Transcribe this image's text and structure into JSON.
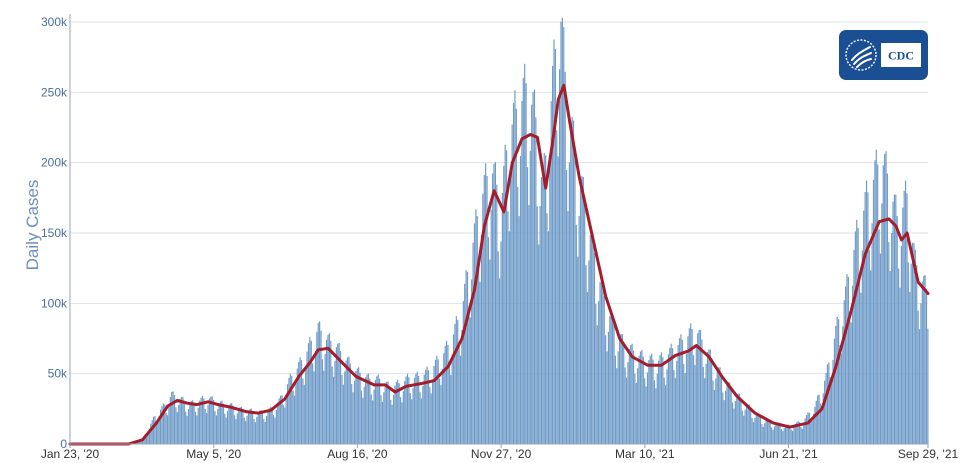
{
  "chart_data": {
    "type": "bar",
    "ylabel": "Daily Cases",
    "ylim": [
      0,
      300000
    ],
    "y_ticks": [
      {
        "value": 0,
        "label": "0"
      },
      {
        "value": 50000,
        "label": "50k"
      },
      {
        "value": 100000,
        "label": "100k"
      },
      {
        "value": 150000,
        "label": "150k"
      },
      {
        "value": 200000,
        "label": "200k"
      },
      {
        "value": 250000,
        "label": "250k"
      },
      {
        "value": 300000,
        "label": "300k"
      }
    ],
    "x_range": [
      "2020-01-23",
      "2021-09-29"
    ],
    "x_ticks": [
      {
        "date": "2020-01-23",
        "label": "Jan 23, '20"
      },
      {
        "date": "2020-05-05",
        "label": "May 5, '20"
      },
      {
        "date": "2020-08-16",
        "label": "Aug 16, '20"
      },
      {
        "date": "2020-11-27",
        "label": "Nov 27, '20"
      },
      {
        "date": "2021-03-10",
        "label": "Mar 10, '21"
      },
      {
        "date": "2021-06-21",
        "label": "Jun 21, '21"
      },
      {
        "date": "2021-09-29",
        "label": "Sep 29, '21"
      }
    ],
    "grid": true,
    "colors": {
      "bars": "#6f9bc8",
      "average_line": "#a31d2b"
    },
    "series": [
      {
        "type": "bar",
        "points": [
          [
            "2020-01-23",
            0
          ],
          [
            "2020-03-01",
            0
          ],
          [
            "2020-03-10",
            500
          ],
          [
            "2020-03-15",
            3000
          ],
          [
            "2020-03-20",
            12000
          ],
          [
            "2020-03-25",
            20000
          ],
          [
            "2020-04-01",
            27000
          ],
          [
            "2020-04-05",
            33000
          ],
          [
            "2020-04-10",
            31000
          ],
          [
            "2020-04-15",
            28000
          ],
          [
            "2020-04-20",
            27000
          ],
          [
            "2020-04-25",
            29000
          ],
          [
            "2020-05-01",
            31000
          ],
          [
            "2020-05-05",
            29000
          ],
          [
            "2020-05-10",
            27000
          ],
          [
            "2020-05-15",
            26000
          ],
          [
            "2020-05-20",
            25000
          ],
          [
            "2020-05-25",
            23000
          ],
          [
            "2020-06-01",
            22000
          ],
          [
            "2020-06-08",
            21000
          ],
          [
            "2020-06-15",
            23000
          ],
          [
            "2020-06-22",
            30000
          ],
          [
            "2020-06-28",
            42000
          ],
          [
            "2020-07-05",
            52000
          ],
          [
            "2020-07-10",
            60000
          ],
          [
            "2020-07-15",
            70000
          ],
          [
            "2020-07-19",
            77000
          ],
          [
            "2020-07-25",
            70000
          ],
          [
            "2020-08-01",
            65000
          ],
          [
            "2020-08-08",
            56000
          ],
          [
            "2020-08-16",
            48000
          ],
          [
            "2020-08-25",
            43000
          ],
          [
            "2020-09-01",
            43000
          ],
          [
            "2020-09-08",
            38000
          ],
          [
            "2020-09-15",
            40000
          ],
          [
            "2020-09-22",
            44000
          ],
          [
            "2020-10-01",
            45000
          ],
          [
            "2020-10-08",
            50000
          ],
          [
            "2020-10-15",
            58000
          ],
          [
            "2020-10-22",
            68000
          ],
          [
            "2020-10-30",
            90000
          ],
          [
            "2020-11-05",
            125000
          ],
          [
            "2020-11-13",
            165000
          ],
          [
            "2020-11-20",
            185000
          ],
          [
            "2020-11-27",
            160000
          ],
          [
            "2020-12-03",
            210000
          ],
          [
            "2020-12-10",
            225000
          ],
          [
            "2020-12-16",
            240000
          ],
          [
            "2020-12-22",
            215000
          ],
          [
            "2020-12-27",
            170000
          ],
          [
            "2021-01-02",
            230000
          ],
          [
            "2021-01-05",
            260000
          ],
          [
            "2021-01-08",
            296000
          ],
          [
            "2021-01-12",
            245000
          ],
          [
            "2021-01-18",
            200000
          ],
          [
            "2021-01-25",
            165000
          ],
          [
            "2021-02-01",
            130000
          ],
          [
            "2021-02-08",
            100000
          ],
          [
            "2021-02-15",
            80000
          ],
          [
            "2021-02-22",
            68000
          ],
          [
            "2021-03-01",
            62000
          ],
          [
            "2021-03-10",
            57000
          ],
          [
            "2021-03-18",
            55000
          ],
          [
            "2021-03-25",
            58000
          ],
          [
            "2021-04-01",
            65000
          ],
          [
            "2021-04-08",
            70000
          ],
          [
            "2021-04-15",
            78000
          ],
          [
            "2021-04-22",
            65000
          ],
          [
            "2021-05-01",
            50000
          ],
          [
            "2021-05-10",
            38000
          ],
          [
            "2021-05-20",
            28000
          ],
          [
            "2021-05-31",
            18000
          ],
          [
            "2021-06-10",
            14000
          ],
          [
            "2021-06-21",
            12000
          ],
          [
            "2021-07-01",
            15000
          ],
          [
            "2021-07-10",
            25000
          ],
          [
            "2021-07-18",
            45000
          ],
          [
            "2021-07-25",
            75000
          ],
          [
            "2021-08-01",
            100000
          ],
          [
            "2021-08-08",
            135000
          ],
          [
            "2021-08-15",
            160000
          ],
          [
            "2021-08-22",
            180000
          ],
          [
            "2021-08-27",
            190000
          ],
          [
            "2021-09-01",
            175000
          ],
          [
            "2021-09-07",
            150000
          ],
          [
            "2021-09-14",
            165000
          ],
          [
            "2021-09-20",
            120000
          ],
          [
            "2021-09-29",
            100000
          ]
        ]
      },
      {
        "type": "line",
        "points": [
          [
            "2020-01-23",
            0
          ],
          [
            "2020-03-05",
            0
          ],
          [
            "2020-03-15",
            3000
          ],
          [
            "2020-03-25",
            15000
          ],
          [
            "2020-04-02",
            27000
          ],
          [
            "2020-04-09",
            31000
          ],
          [
            "2020-04-16",
            29000
          ],
          [
            "2020-04-23",
            28000
          ],
          [
            "2020-05-01",
            30000
          ],
          [
            "2020-05-08",
            28000
          ],
          [
            "2020-05-18",
            26000
          ],
          [
            "2020-05-28",
            23000
          ],
          [
            "2020-06-06",
            22000
          ],
          [
            "2020-06-15",
            24000
          ],
          [
            "2020-06-25",
            32000
          ],
          [
            "2020-07-05",
            48000
          ],
          [
            "2020-07-13",
            58000
          ],
          [
            "2020-07-19",
            67000
          ],
          [
            "2020-07-26",
            68000
          ],
          [
            "2020-08-05",
            58000
          ],
          [
            "2020-08-15",
            48000
          ],
          [
            "2020-08-28",
            42000
          ],
          [
            "2020-09-05",
            42000
          ],
          [
            "2020-09-12",
            37000
          ],
          [
            "2020-09-20",
            41000
          ],
          [
            "2020-10-01",
            43000
          ],
          [
            "2020-10-10",
            45000
          ],
          [
            "2020-10-20",
            55000
          ],
          [
            "2020-10-30",
            75000
          ],
          [
            "2020-11-08",
            110000
          ],
          [
            "2020-11-15",
            155000
          ],
          [
            "2020-11-22",
            180000
          ],
          [
            "2020-11-29",
            165000
          ],
          [
            "2020-12-05",
            200000
          ],
          [
            "2020-12-12",
            217000
          ],
          [
            "2020-12-18",
            220000
          ],
          [
            "2020-12-23",
            218000
          ],
          [
            "2020-12-29",
            182000
          ],
          [
            "2021-01-03",
            215000
          ],
          [
            "2021-01-07",
            245000
          ],
          [
            "2021-01-11",
            255000
          ],
          [
            "2021-01-15",
            230000
          ],
          [
            "2021-01-22",
            190000
          ],
          [
            "2021-02-01",
            145000
          ],
          [
            "2021-02-10",
            105000
          ],
          [
            "2021-02-20",
            75000
          ],
          [
            "2021-03-01",
            62000
          ],
          [
            "2021-03-12",
            56000
          ],
          [
            "2021-03-22",
            56000
          ],
          [
            "2021-04-01",
            63000
          ],
          [
            "2021-04-10",
            66000
          ],
          [
            "2021-04-16",
            70000
          ],
          [
            "2021-04-25",
            62000
          ],
          [
            "2021-05-05",
            47000
          ],
          [
            "2021-05-15",
            34000
          ],
          [
            "2021-05-28",
            22000
          ],
          [
            "2021-06-10",
            15000
          ],
          [
            "2021-06-22",
            12000
          ],
          [
            "2021-07-05",
            15000
          ],
          [
            "2021-07-15",
            25000
          ],
          [
            "2021-07-25",
            55000
          ],
          [
            "2021-08-05",
            95000
          ],
          [
            "2021-08-15",
            135000
          ],
          [
            "2021-08-25",
            158000
          ],
          [
            "2021-09-01",
            160000
          ],
          [
            "2021-09-06",
            155000
          ],
          [
            "2021-09-10",
            145000
          ],
          [
            "2021-09-14",
            150000
          ],
          [
            "2021-09-22",
            115000
          ],
          [
            "2021-09-29",
            107000
          ]
        ]
      }
    ]
  },
  "logo": {
    "text": "CDC"
  }
}
